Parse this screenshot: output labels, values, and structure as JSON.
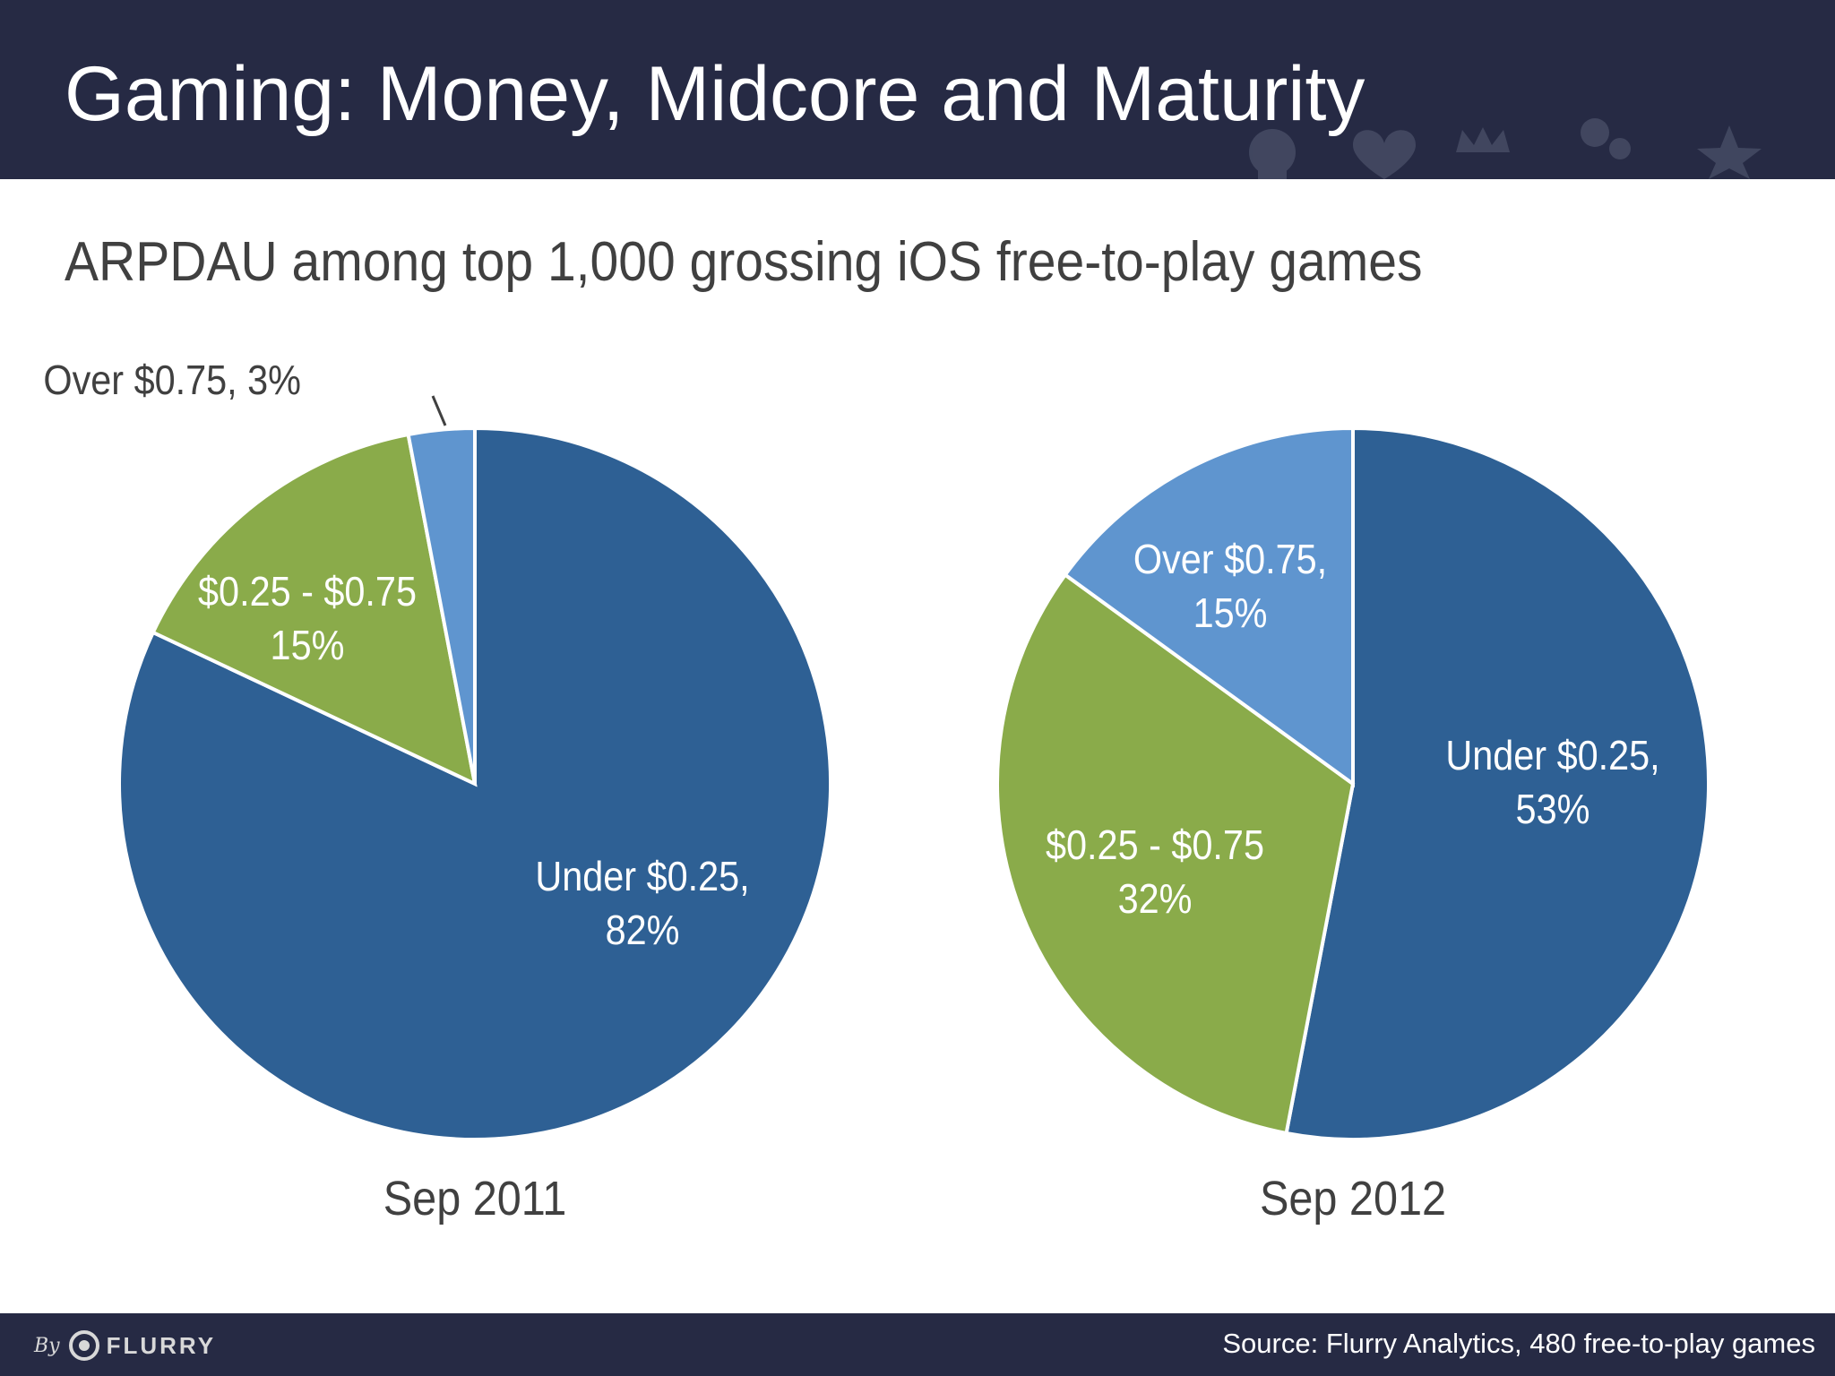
{
  "header": {
    "title": "Gaming: Money, Midcore and Maturity"
  },
  "subtitle": "ARPDAU among top 1,000 grossing iOS free-to-play games",
  "colors": {
    "header_bg": "#262a44",
    "under_025": "#2e6094",
    "between_025_075": "#8aab4a",
    "over_075": "#5f95cf",
    "label_dark": "#404040"
  },
  "chart_data": [
    {
      "type": "pie",
      "title": "Sep 2011",
      "slices": [
        {
          "label": "Under $0.25,",
          "value": 82,
          "value_label": "82%",
          "color": "#2e6094"
        },
        {
          "label": "$0.25 - $0.75",
          "value": 15,
          "value_label": "15%",
          "color": "#8aab4a"
        },
        {
          "label": "Over $0.75, 3%",
          "value": 3,
          "value_label": "",
          "color": "#5f95cf",
          "callout": true
        }
      ]
    },
    {
      "type": "pie",
      "title": "Sep 2012",
      "slices": [
        {
          "label": "Under $0.25,",
          "value": 53,
          "value_label": "53%",
          "color": "#2e6094"
        },
        {
          "label": "$0.25 - $0.75",
          "value": 32,
          "value_label": "32%",
          "color": "#8aab4a"
        },
        {
          "label": "Over $0.75,",
          "value": 15,
          "value_label": "15%",
          "color": "#5f95cf"
        }
      ]
    }
  ],
  "footer": {
    "logo_by": "By",
    "logo_name": "FLURRY",
    "source": "Source: Flurry Analytics, 480 free-to-play games"
  }
}
